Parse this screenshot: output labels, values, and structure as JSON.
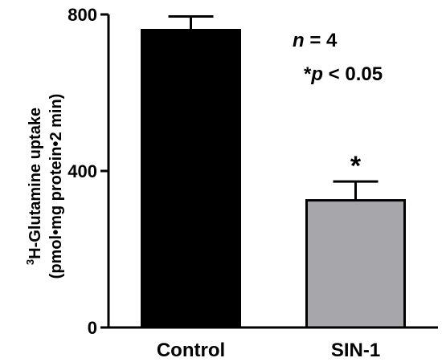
{
  "chart_data": {
    "type": "bar",
    "categories": [
      "Control",
      "SIN-1"
    ],
    "values": [
      760,
      325
    ],
    "errors": [
      35,
      48
    ],
    "colors": [
      "#000000",
      "#a7a7ab"
    ],
    "ylim": [
      0,
      800
    ],
    "yticks": [
      0,
      400,
      800
    ],
    "ylabel_sup": "3",
    "ylabel_line1": "H-Glutamine uptake",
    "ylabel_line2": "(pmol•mg protein•2 min)",
    "significance": [
      "",
      "*"
    ],
    "annotations": {
      "n_italic": "n",
      "n_rest": " = 4",
      "p_star": "*",
      "p_italic": "p",
      "p_rest": " < 0.05"
    },
    "grid": false,
    "legend": "none"
  }
}
